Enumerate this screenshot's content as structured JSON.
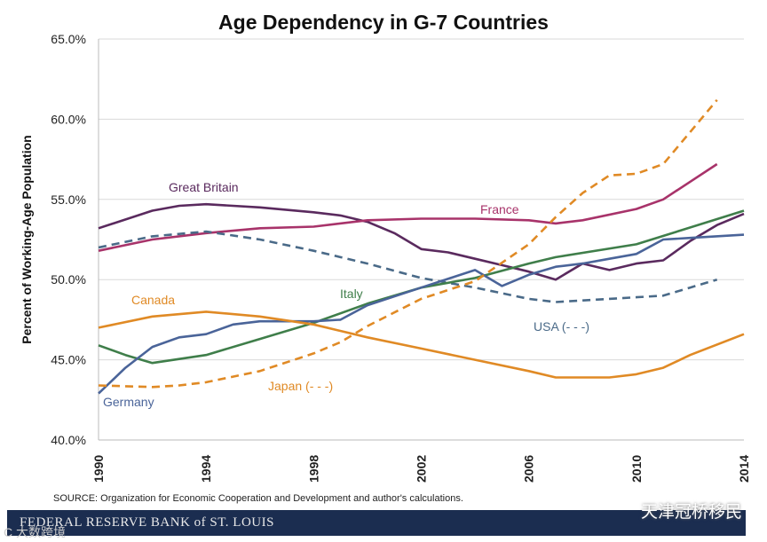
{
  "chart_data": {
    "type": "line",
    "title": "Age Dependency in G-7 Countries",
    "xlabel": "",
    "ylabel": "Percent of Working-Age Population",
    "xlim": [
      1990,
      2014
    ],
    "ylim": [
      40,
      65
    ],
    "x_ticks": [
      "1990",
      "1994",
      "1998",
      "2002",
      "2006",
      "2010",
      "2014"
    ],
    "y_ticks": [
      "40.0%",
      "45.0%",
      "50.0%",
      "55.0%",
      "60.0%",
      "65.0%"
    ],
    "grid": "horizontal",
    "series": [
      {
        "name": "Great Britain",
        "label": "Great Britain",
        "color": "#5a2a5e",
        "dashed": false,
        "points": [
          [
            1990,
            53.2
          ],
          [
            1992,
            54.3
          ],
          [
            1993,
            54.6
          ],
          [
            1994,
            54.7
          ],
          [
            1996,
            54.5
          ],
          [
            1998,
            54.2
          ],
          [
            1999,
            54.0
          ],
          [
            2000,
            53.6
          ],
          [
            2001,
            52.9
          ],
          [
            2002,
            51.9
          ],
          [
            2003,
            51.7
          ],
          [
            2004,
            51.3
          ],
          [
            2005,
            50.9
          ],
          [
            2006,
            50.5
          ],
          [
            2007,
            50.0
          ],
          [
            2008,
            51.0
          ],
          [
            2009,
            50.6
          ],
          [
            2010,
            51.0
          ],
          [
            2011,
            51.2
          ],
          [
            2012,
            52.4
          ],
          [
            2013,
            53.4
          ],
          [
            2014,
            54.1
          ]
        ]
      },
      {
        "name": "France",
        "label": "France",
        "color": "#a8336a",
        "dashed": false,
        "points": [
          [
            1990,
            51.8
          ],
          [
            1992,
            52.5
          ],
          [
            1994,
            52.9
          ],
          [
            1996,
            53.2
          ],
          [
            1998,
            53.3
          ],
          [
            2000,
            53.7
          ],
          [
            2002,
            53.8
          ],
          [
            2004,
            53.8
          ],
          [
            2006,
            53.7
          ],
          [
            2007,
            53.5
          ],
          [
            2008,
            53.7
          ],
          [
            2010,
            54.4
          ],
          [
            2011,
            55.0
          ],
          [
            2012,
            56.1
          ],
          [
            2013,
            57.2
          ]
        ]
      },
      {
        "name": "USA",
        "label": "USA (- - -)",
        "color": "#4a6a88",
        "dashed": true,
        "points": [
          [
            1990,
            52.0
          ],
          [
            1992,
            52.7
          ],
          [
            1994,
            53.0
          ],
          [
            1996,
            52.5
          ],
          [
            1998,
            51.8
          ],
          [
            2000,
            51.0
          ],
          [
            2002,
            50.1
          ],
          [
            2004,
            49.5
          ],
          [
            2006,
            48.8
          ],
          [
            2007,
            48.6
          ],
          [
            2008,
            48.7
          ],
          [
            2010,
            48.9
          ],
          [
            2011,
            49.0
          ],
          [
            2012,
            49.5
          ],
          [
            2013,
            50.0
          ]
        ]
      },
      {
        "name": "Italy",
        "label": "Italy",
        "color": "#3f7e4a",
        "dashed": false,
        "points": [
          [
            1990,
            45.9
          ],
          [
            1991,
            45.3
          ],
          [
            1992,
            44.8
          ],
          [
            1994,
            45.3
          ],
          [
            1996,
            46.3
          ],
          [
            1998,
            47.3
          ],
          [
            2000,
            48.5
          ],
          [
            2002,
            49.5
          ],
          [
            2004,
            50.1
          ],
          [
            2006,
            51.0
          ],
          [
            2007,
            51.4
          ],
          [
            2010,
            52.2
          ],
          [
            2014,
            54.3
          ]
        ]
      },
      {
        "name": "Germany",
        "label": "Germany",
        "color": "#4a6499",
        "dashed": false,
        "points": [
          [
            1990,
            42.9
          ],
          [
            1991,
            44.5
          ],
          [
            1992,
            45.8
          ],
          [
            1993,
            46.4
          ],
          [
            1994,
            46.6
          ],
          [
            1995,
            47.2
          ],
          [
            1996,
            47.4
          ],
          [
            1998,
            47.4
          ],
          [
            1999,
            47.5
          ],
          [
            2000,
            48.4
          ],
          [
            2002,
            49.5
          ],
          [
            2004,
            50.6
          ],
          [
            2005,
            49.6
          ],
          [
            2006,
            50.3
          ],
          [
            2007,
            50.8
          ],
          [
            2008,
            51.0
          ],
          [
            2009,
            51.3
          ],
          [
            2010,
            51.6
          ],
          [
            2011,
            52.5
          ],
          [
            2012,
            52.6
          ],
          [
            2014,
            52.8
          ]
        ]
      },
      {
        "name": "Canada",
        "label": "Canada",
        "color": "#e08a25",
        "dashed": false,
        "points": [
          [
            1990,
            47.0
          ],
          [
            1992,
            47.7
          ],
          [
            1994,
            48.0
          ],
          [
            1996,
            47.7
          ],
          [
            1998,
            47.2
          ],
          [
            2000,
            46.4
          ],
          [
            2002,
            45.7
          ],
          [
            2004,
            45.0
          ],
          [
            2006,
            44.3
          ],
          [
            2007,
            43.9
          ],
          [
            2009,
            43.9
          ],
          [
            2010,
            44.1
          ],
          [
            2011,
            44.5
          ],
          [
            2012,
            45.3
          ],
          [
            2014,
            46.6
          ]
        ]
      },
      {
        "name": "Japan",
        "label": "Japan (- - -)",
        "color": "#e08a25",
        "dashed": true,
        "points": [
          [
            1990,
            43.4
          ],
          [
            1992,
            43.3
          ],
          [
            1993,
            43.4
          ],
          [
            1994,
            43.6
          ],
          [
            1996,
            44.3
          ],
          [
            1998,
            45.4
          ],
          [
            1999,
            46.1
          ],
          [
            2000,
            47.1
          ],
          [
            2002,
            48.8
          ],
          [
            2004,
            49.9
          ],
          [
            2006,
            52.2
          ],
          [
            2007,
            53.9
          ],
          [
            2008,
            55.4
          ],
          [
            2009,
            56.5
          ],
          [
            2010,
            56.6
          ],
          [
            2011,
            57.2
          ],
          [
            2012,
            59.2
          ],
          [
            2013,
            61.2
          ]
        ]
      }
    ]
  },
  "source": "SOURCE: Organization for Economic Cooperation and Development and author's calculations.",
  "banner": "FEDERAL RESERVE BANK of ST. LOUIS",
  "watermark": "天津冠桥移民",
  "watermark2": "C  大数跨境"
}
